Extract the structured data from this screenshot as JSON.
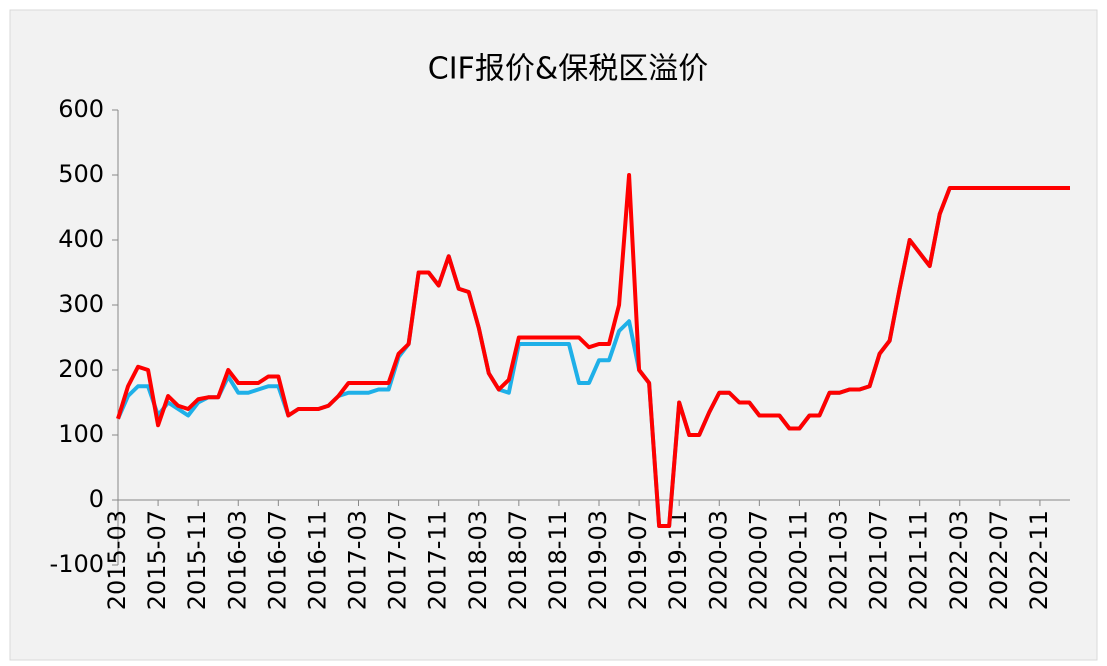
{
  "chart_data": {
    "type": "line",
    "title": "CIF报价&保税区溢价",
    "categories": [
      "2015-03",
      null,
      null,
      null,
      "2015-07",
      null,
      null,
      null,
      "2015-11",
      null,
      null,
      null,
      "2016-03",
      null,
      null,
      null,
      "2016-07",
      null,
      null,
      null,
      "2016-11",
      null,
      null,
      null,
      "2017-03",
      null,
      null,
      null,
      "2017-07",
      null,
      null,
      null,
      "2017-11",
      null,
      null,
      null,
      "2018-03",
      null,
      null,
      null,
      "2018-07",
      null,
      null,
      null,
      "2018-11",
      null,
      null,
      null,
      "2019-03",
      null,
      null,
      null,
      "2019-07",
      null,
      null,
      null,
      "2019-11",
      null,
      null,
      null,
      "2020-03",
      null,
      null,
      null,
      "2020-07",
      null,
      null,
      null,
      "2020-11",
      null,
      null,
      null,
      "2021-03",
      null,
      null,
      null,
      "2021-07",
      null,
      null,
      null,
      "2021-11",
      null,
      null,
      null,
      "2022-03",
      null,
      null,
      null,
      "2022-07",
      null,
      null,
      null,
      "2022-11",
      null,
      null,
      null
    ],
    "series": [
      {
        "color": "#1fb0e8",
        "values": [
          125,
          160,
          175,
          175,
          130,
          150,
          140,
          130,
          150,
          158,
          158,
          190,
          165,
          165,
          170,
          175,
          175,
          130,
          140,
          140,
          140,
          145,
          160,
          165,
          165,
          165,
          170,
          170,
          220,
          240,
          350,
          350,
          330,
          375,
          325,
          320,
          265,
          195,
          170,
          165,
          240,
          240,
          240,
          240,
          240,
          240,
          180,
          180,
          215,
          215,
          260,
          275,
          200,
          180,
          -40,
          -40,
          150,
          100,
          100,
          135,
          165,
          165,
          150,
          150,
          130,
          130,
          130,
          110,
          110,
          130,
          130,
          165,
          165,
          170,
          170,
          175,
          225,
          245,
          325,
          400,
          380,
          360,
          440,
          480,
          480,
          480,
          480,
          480,
          480,
          480,
          480,
          480,
          480,
          480,
          480,
          480
        ]
      },
      {
        "color": "#ff0000",
        "values": [
          125,
          175,
          205,
          200,
          115,
          160,
          145,
          140,
          155,
          158,
          158,
          200,
          180,
          180,
          180,
          190,
          190,
          130,
          140,
          140,
          140,
          145,
          160,
          180,
          180,
          180,
          180,
          180,
          225,
          240,
          350,
          350,
          330,
          375,
          325,
          320,
          265,
          195,
          170,
          185,
          250,
          250,
          250,
          250,
          250,
          250,
          250,
          235,
          240,
          240,
          300,
          500,
          200,
          180,
          -40,
          -40,
          150,
          100,
          100,
          135,
          165,
          165,
          150,
          150,
          130,
          130,
          130,
          110,
          110,
          130,
          130,
          165,
          165,
          170,
          170,
          175,
          225,
          245,
          325,
          400,
          380,
          360,
          440,
          480,
          480,
          480,
          480,
          480,
          480,
          480,
          480,
          480,
          480,
          480,
          480,
          480
        ]
      }
    ],
    "ylim": [
      -100,
      600
    ],
    "yticks": [
      -100,
      0,
      100,
      200,
      300,
      400,
      500,
      600
    ],
    "grid": false
  }
}
